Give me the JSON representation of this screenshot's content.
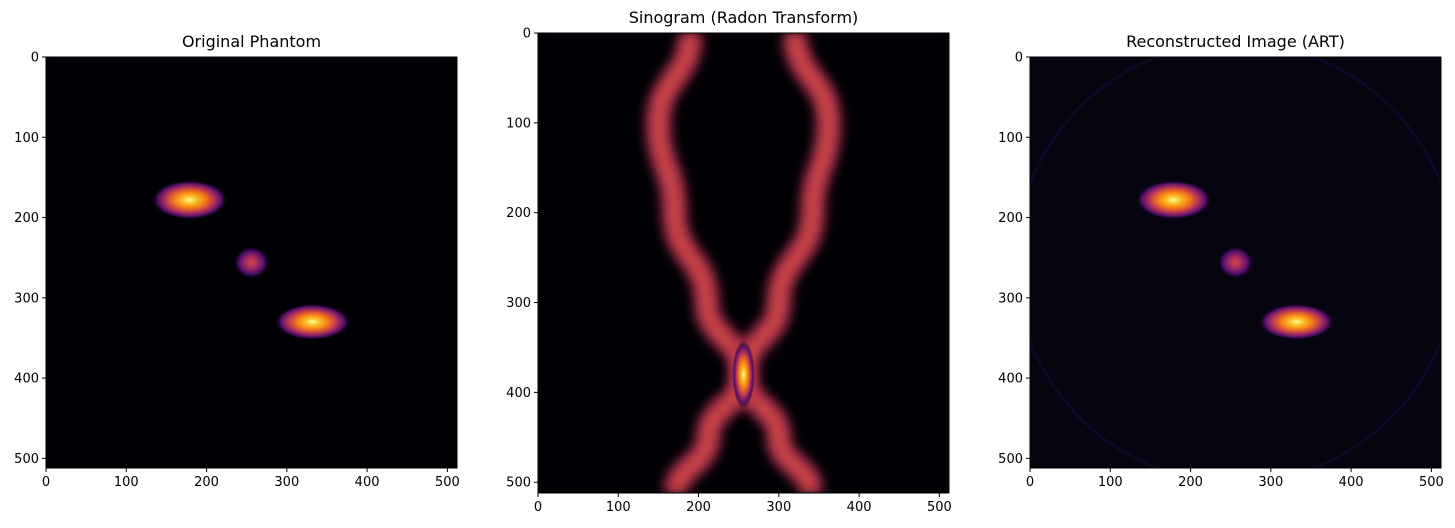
{
  "chart_data": [
    {
      "type": "heatmap",
      "title": "Original Phantom",
      "colormap": "inferno",
      "xlim": [
        0,
        512
      ],
      "ylim": [
        512,
        0
      ],
      "x_ticks": [
        "0",
        "100",
        "200",
        "300",
        "400",
        "500"
      ],
      "y_ticks": [
        "0",
        "100",
        "200",
        "300",
        "400",
        "500"
      ],
      "x_tick_values": [
        0,
        100,
        200,
        300,
        400,
        500
      ],
      "y_tick_values": [
        0,
        100,
        200,
        300,
        400,
        500
      ],
      "background": "#000004",
      "blobs": [
        {
          "cx": 179,
          "cy": 178,
          "rx": 48,
          "ry": 25,
          "peak": 1.0
        },
        {
          "cx": 256,
          "cy": 256,
          "rx": 23,
          "ry": 21,
          "peak": 0.55
        },
        {
          "cx": 332,
          "cy": 330,
          "rx": 48,
          "ry": 23,
          "peak": 1.0
        }
      ]
    },
    {
      "type": "heatmap",
      "title": "Sinogram (Radon Transform)",
      "colormap": "inferno",
      "xlim": [
        0,
        512
      ],
      "ylim": [
        512,
        0
      ],
      "x_ticks": [
        "0",
        "100",
        "200",
        "300",
        "400",
        "500"
      ],
      "y_ticks": [
        "0",
        "100",
        "200",
        "300",
        "400",
        "500"
      ],
      "x_tick_values": [
        0,
        100,
        200,
        300,
        400,
        500
      ],
      "y_tick_values": [
        0,
        100,
        200,
        300,
        400,
        500
      ],
      "background": "#000004",
      "curves": [
        {
          "name": "a",
          "points": [
            [
              190,
              0
            ],
            [
              150,
              100
            ],
            [
              170,
              200
            ],
            [
              210,
              300
            ],
            [
              256,
              380
            ],
            [
              300,
              450
            ],
            [
              340,
              512
            ]
          ],
          "width": 22,
          "peak": 0.75
        },
        {
          "name": "b",
          "points": [
            [
              320,
              0
            ],
            [
              362,
              100
            ],
            [
              342,
              200
            ],
            [
              300,
              300
            ],
            [
              256,
              380
            ],
            [
              212,
              450
            ],
            [
              172,
              512
            ]
          ],
          "width": 22,
          "peak": 0.75
        },
        {
          "name": "c",
          "points": [
            [
              256,
              0
            ],
            [
              256,
              512
            ]
          ],
          "width": 12,
          "peak": 0.35
        }
      ],
      "hotspot": {
        "cx": 256,
        "cy": 380,
        "rx": 14,
        "ry": 38,
        "peak": 1.0
      }
    },
    {
      "type": "heatmap",
      "title": "Reconstructed Image (ART)",
      "colormap": "inferno",
      "xlim": [
        0,
        512
      ],
      "ylim": [
        512,
        0
      ],
      "x_ticks": [
        "0",
        "100",
        "200",
        "300",
        "400",
        "500"
      ],
      "y_ticks": [
        "0",
        "100",
        "200",
        "300",
        "400",
        "500"
      ],
      "x_tick_values": [
        0,
        100,
        200,
        300,
        400,
        500
      ],
      "y_tick_values": [
        0,
        100,
        200,
        300,
        400,
        500
      ],
      "background": "#05040f",
      "blobs": [
        {
          "cx": 179,
          "cy": 178,
          "rx": 48,
          "ry": 25,
          "peak": 1.0
        },
        {
          "cx": 256,
          "cy": 256,
          "rx": 23,
          "ry": 21,
          "peak": 0.55
        },
        {
          "cx": 332,
          "cy": 330,
          "rx": 48,
          "ry": 23,
          "peak": 1.0
        }
      ]
    }
  ]
}
